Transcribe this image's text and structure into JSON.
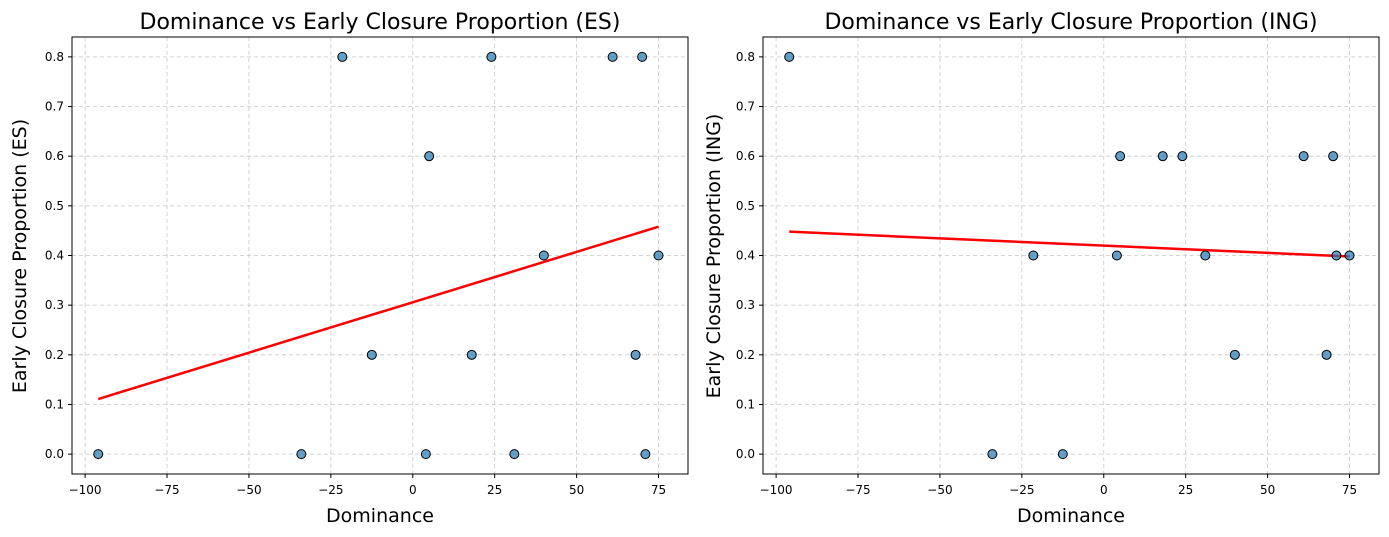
{
  "colors": {
    "point": "#1f77b4",
    "fit_line": "#ff0000"
  },
  "chart_data": [
    {
      "type": "scatter",
      "title": "Dominance vs Early Closure Proportion (ES)",
      "xlabel": "Dominance",
      "ylabel": "Early Closure Proportion (ES)",
      "xlim": [
        -104,
        84
      ],
      "ylim": [
        -0.04,
        0.84
      ],
      "xticks": [
        -100,
        -75,
        -50,
        -25,
        0,
        25,
        50,
        75
      ],
      "xtick_labels": [
        "−100",
        "−75",
        "−50",
        "−25",
        "0",
        "25",
        "50",
        "75"
      ],
      "yticks": [
        0.0,
        0.1,
        0.2,
        0.3,
        0.4,
        0.5,
        0.6,
        0.7,
        0.8
      ],
      "ytick_labels": [
        "0.0",
        "0.1",
        "0.2",
        "0.3",
        "0.4",
        "0.5",
        "0.6",
        "0.7",
        "0.8"
      ],
      "grid": true,
      "points": [
        {
          "x": -96,
          "y": 0.0
        },
        {
          "x": -34,
          "y": 0.0
        },
        {
          "x": -21.5,
          "y": 0.8
        },
        {
          "x": -12.5,
          "y": 0.2
        },
        {
          "x": 4,
          "y": 0.0
        },
        {
          "x": 5,
          "y": 0.6
        },
        {
          "x": 18,
          "y": 0.2
        },
        {
          "x": 24,
          "y": 0.8
        },
        {
          "x": 31,
          "y": 0.0
        },
        {
          "x": 40,
          "y": 0.4
        },
        {
          "x": 61,
          "y": 0.8
        },
        {
          "x": 68,
          "y": 0.2
        },
        {
          "x": 70,
          "y": 0.8
        },
        {
          "x": 71,
          "y": 0.0
        },
        {
          "x": 75,
          "y": 0.4
        }
      ],
      "fit_line": {
        "x": [
          -96,
          75
        ],
        "y": [
          0.111,
          0.458
        ]
      }
    },
    {
      "type": "scatter",
      "title": "Dominance vs Early Closure Proportion (ING)",
      "xlabel": "Dominance",
      "ylabel": "Early Closure Proportion (ING)",
      "xlim": [
        -104,
        84
      ],
      "ylim": [
        -0.04,
        0.84
      ],
      "xticks": [
        -100,
        -75,
        -50,
        -25,
        0,
        25,
        50,
        75
      ],
      "xtick_labels": [
        "−100",
        "−75",
        "−50",
        "−25",
        "0",
        "25",
        "50",
        "75"
      ],
      "yticks": [
        0.0,
        0.1,
        0.2,
        0.3,
        0.4,
        0.5,
        0.6,
        0.7,
        0.8
      ],
      "ytick_labels": [
        "0.0",
        "0.1",
        "0.2",
        "0.3",
        "0.4",
        "0.5",
        "0.6",
        "0.7",
        "0.8"
      ],
      "grid": true,
      "points": [
        {
          "x": -96,
          "y": 0.8
        },
        {
          "x": -34,
          "y": 0.0
        },
        {
          "x": -21.5,
          "y": 0.4
        },
        {
          "x": -12.5,
          "y": 0.0
        },
        {
          "x": 4,
          "y": 0.4
        },
        {
          "x": 5,
          "y": 0.6
        },
        {
          "x": 18,
          "y": 0.6
        },
        {
          "x": 24,
          "y": 0.6
        },
        {
          "x": 31,
          "y": 0.4
        },
        {
          "x": 40,
          "y": 0.2
        },
        {
          "x": 61,
          "y": 0.6
        },
        {
          "x": 68,
          "y": 0.2
        },
        {
          "x": 70,
          "y": 0.6
        },
        {
          "x": 71,
          "y": 0.4
        },
        {
          "x": 75,
          "y": 0.4
        }
      ],
      "fit_line": {
        "x": [
          -96,
          75
        ],
        "y": [
          0.448,
          0.398
        ]
      }
    }
  ]
}
